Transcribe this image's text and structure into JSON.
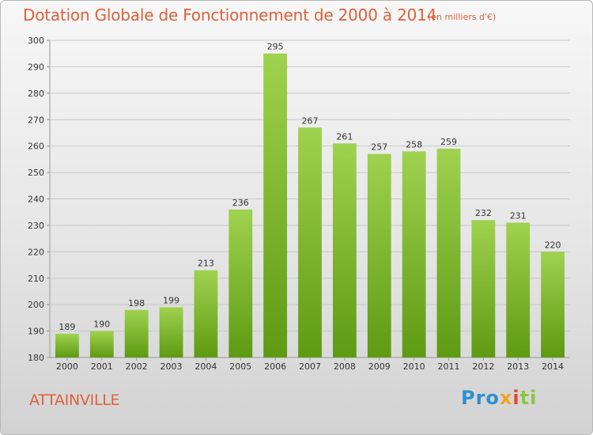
{
  "header": {
    "title": "Dotation Globale de Fonctionnement de 2000 à 2014",
    "unit": "(en milliers d'€)"
  },
  "footer": {
    "commune": "ATTAINVILLE",
    "logo": {
      "p1": "Pro",
      "p2": "x",
      "p3": "i",
      "p4": "ti"
    }
  },
  "chart_data": {
    "type": "bar",
    "title": "Dotation Globale de Fonctionnement de 2000 à 2014",
    "subtitle": "(en milliers d'€)",
    "categories": [
      "2000",
      "2001",
      "2002",
      "2003",
      "2004",
      "2005",
      "2006",
      "2007",
      "2008",
      "2009",
      "2010",
      "2011",
      "2012",
      "2013",
      "2014"
    ],
    "values": [
      189,
      190,
      198,
      199,
      213,
      236,
      295,
      267,
      261,
      257,
      258,
      259,
      232,
      231,
      220
    ],
    "ylim": [
      180,
      300
    ],
    "yticks": [
      180,
      190,
      200,
      210,
      220,
      230,
      240,
      250,
      260,
      270,
      280,
      290,
      300
    ],
    "xlabel": "",
    "ylabel": "",
    "grid": true,
    "legend": "none",
    "colors": {
      "bar_top": "#9fd24f",
      "bar_bottom": "#5e9a12",
      "grid": "#c8c8c8",
      "title": "#e0603a"
    }
  }
}
